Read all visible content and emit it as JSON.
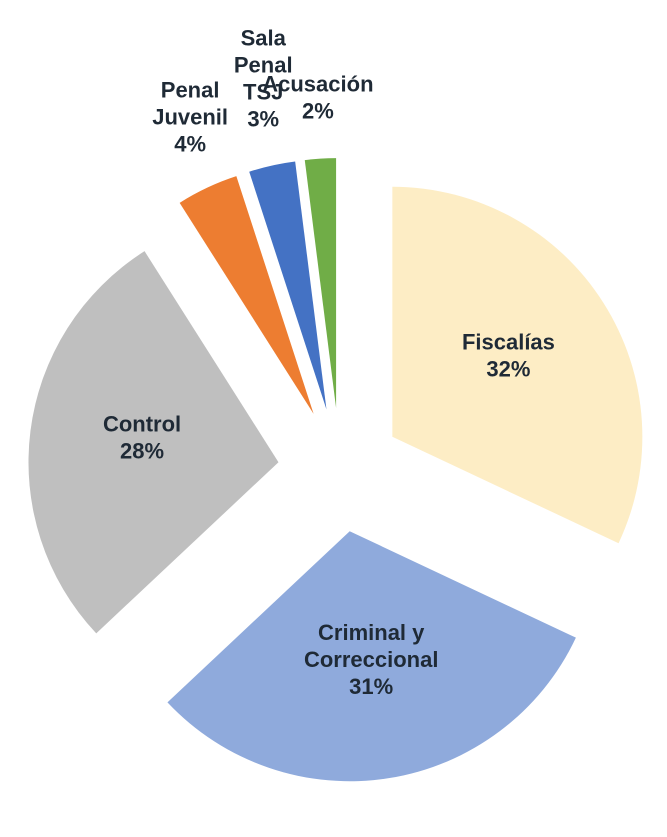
{
  "chart_data": {
    "type": "pie",
    "categories": [
      "Fiscalías",
      "Criminal y Correccional",
      "Control",
      "Penal Juvenil",
      "Sala Penal TSJ",
      "Acusación"
    ],
    "values": [
      32,
      31,
      28,
      4,
      3,
      2
    ],
    "value_labels": [
      "32%",
      "31%",
      "28%",
      "4%",
      "3%",
      "2%"
    ],
    "colors": [
      "#fdedc5",
      "#8faadc",
      "#bfbfbf",
      "#ed7d31",
      "#4472c4",
      "#70ad47"
    ]
  }
}
